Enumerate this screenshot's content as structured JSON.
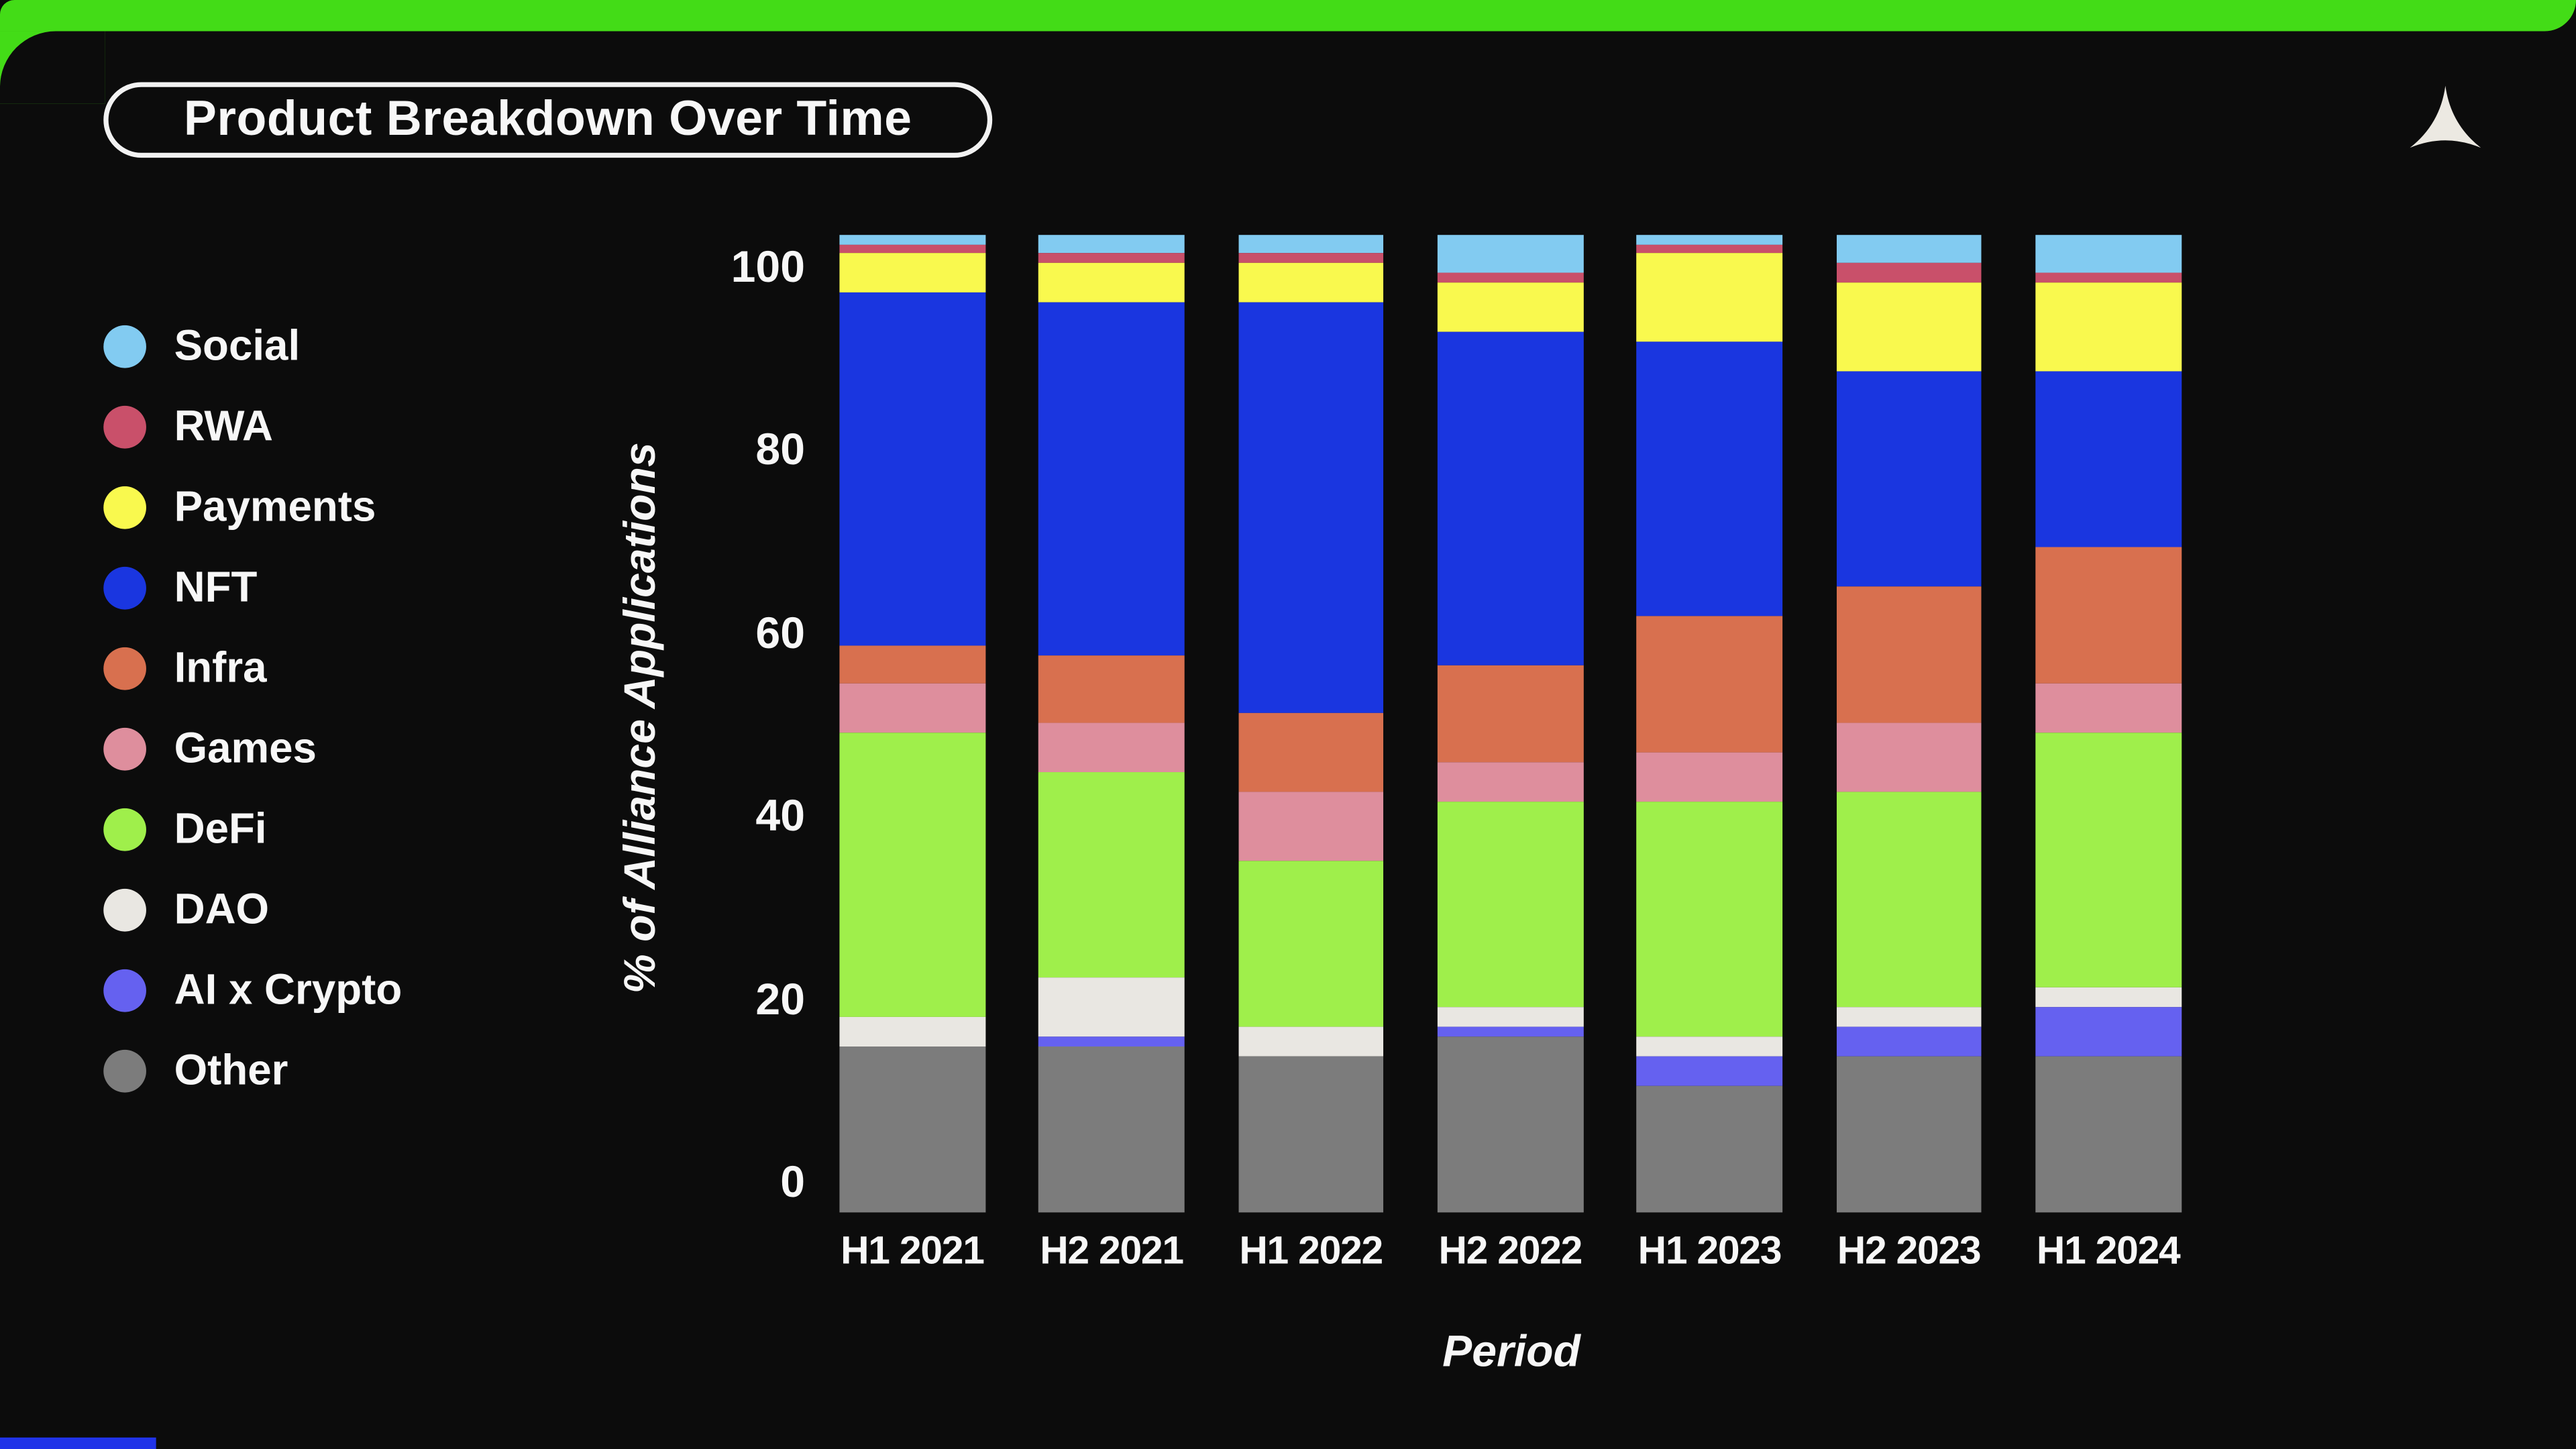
{
  "header": {
    "title": "Product Breakdown Over Time",
    "logo": "concave-triangle-logo"
  },
  "colors": {
    "background": "#0c0c0c",
    "top_bar_green": "#43dc17",
    "bottom_accent_blue": "#2033e8",
    "text": "#f7f7f7",
    "logo_fill": "#ece9e2",
    "title_border": "#f2f2f2"
  },
  "chart_data": {
    "type": "bar",
    "stacked": true,
    "title": "Product Breakdown Over Time",
    "xlabel": "Period",
    "ylabel": "% of Alliance Applications",
    "ylim": [
      0,
      100
    ],
    "yticks": [
      0,
      20,
      40,
      60,
      80,
      100
    ],
    "grid": false,
    "legend_position": "left",
    "legend_order_top_to_bottom": [
      "Social",
      "RWA",
      "Payments",
      "NFT",
      "Infra",
      "Games",
      "DeFi",
      "DAO",
      "AI x Crypto",
      "Other"
    ],
    "categories": [
      "H1 2021",
      "H2 2021",
      "H1 2022",
      "H2 2022",
      "H1 2023",
      "H2 2023",
      "H1 2024"
    ],
    "series": [
      {
        "name": "Other",
        "color": "#7c7c7c",
        "values": [
          17,
          17,
          16,
          18,
          13,
          16,
          16
        ]
      },
      {
        "name": "AI x Crypto",
        "color": "#6561f0",
        "values": [
          0,
          1,
          0,
          1,
          3,
          3,
          5
        ]
      },
      {
        "name": "DAO",
        "color": "#e9e7e2",
        "values": [
          3,
          6,
          3,
          2,
          2,
          2,
          2
        ]
      },
      {
        "name": "DeFi",
        "color": "#9fef4b",
        "values": [
          29,
          21,
          17,
          21,
          24,
          22,
          26
        ]
      },
      {
        "name": "Games",
        "color": "#de8e9d",
        "values": [
          5,
          5,
          7,
          4,
          5,
          7,
          5
        ]
      },
      {
        "name": "Infra",
        "color": "#d8704f",
        "values": [
          4,
          7,
          8,
          10,
          14,
          14,
          14
        ]
      },
      {
        "name": "NFT",
        "color": "#1a36e0",
        "values": [
          36,
          36,
          42,
          34,
          28,
          22,
          18
        ]
      },
      {
        "name": "Payments",
        "color": "#f9f94e",
        "values": [
          4,
          4,
          4,
          5,
          9,
          9,
          9
        ]
      },
      {
        "name": "RWA",
        "color": "#c9506a",
        "values": [
          1,
          1,
          1,
          1,
          1,
          2,
          1
        ]
      },
      {
        "name": "Social",
        "color": "#82cbf1",
        "values": [
          1,
          2,
          2,
          4,
          1,
          3,
          4
        ]
      }
    ]
  }
}
